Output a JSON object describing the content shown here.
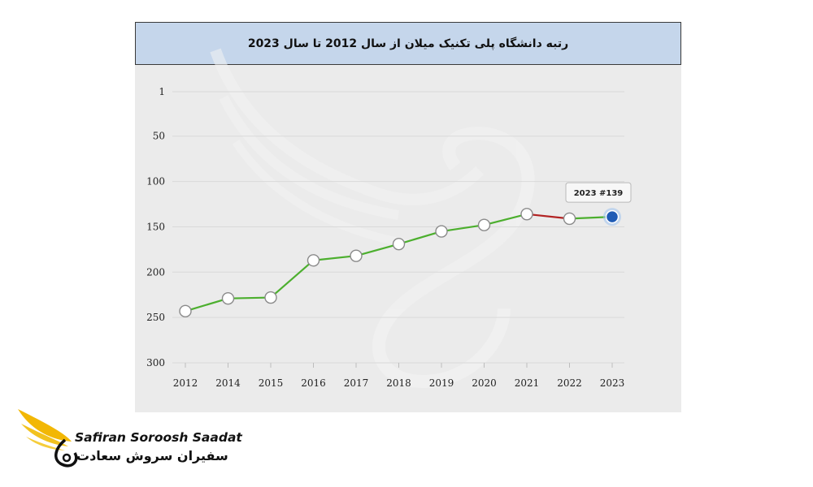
{
  "chart_data": {
    "type": "line",
    "title": "رتبه دانشگاه پلی تکنیک میلان از سال 2012 تا سال 2023",
    "x": [
      "2012",
      "2014",
      "2015",
      "2016",
      "2017",
      "2018",
      "2019",
      "2020",
      "2021",
      "2022",
      "2023"
    ],
    "series": [
      {
        "values": [
          243,
          229,
          228,
          187,
          182,
          169,
          155,
          148,
          136,
          141,
          139
        ]
      }
    ],
    "y_ticks": [
      "1",
      "50",
      "100",
      "150",
      "200",
      "250",
      "300"
    ],
    "y_tick_values": [
      1,
      50,
      100,
      150,
      200,
      250,
      300
    ],
    "ylim": [
      1,
      300
    ],
    "y_reversed": true,
    "grid": true,
    "tooltip": "2023 #139",
    "colors": {
      "line": "#4caf2e",
      "decline_segment": "#b22222",
      "highlight_point": "#1f5bb5",
      "title_bg": "#c5d6eb"
    }
  },
  "branding": {
    "name_en": "Safiran Soroosh Saadat",
    "name_fa": "سفیران سروش سعادت",
    "logo_icon": "swan-wing-logo-icon"
  }
}
